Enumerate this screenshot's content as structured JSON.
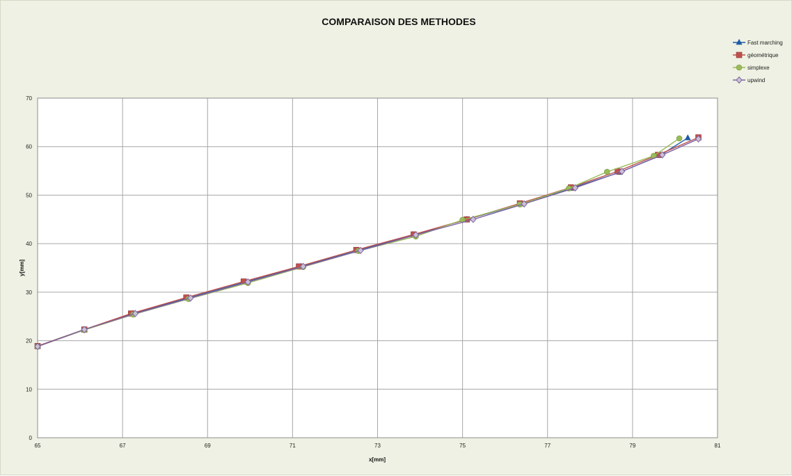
{
  "chart_data": {
    "type": "line",
    "title": "COMPARAISON DES METHODES",
    "xlabel": "x[mm]",
    "ylabel": "y[mm]",
    "xlim": [
      65,
      81
    ],
    "ylim": [
      0,
      70
    ],
    "x_ticks": [
      "65",
      "67",
      "69",
      "71",
      "73",
      "75",
      "77",
      "79",
      "81"
    ],
    "y_ticks": [
      "0",
      "10",
      "20",
      "30",
      "40",
      "50",
      "60",
      "70"
    ],
    "grid": true,
    "legend_position": "top-right",
    "series": [
      {
        "name": "Fast marching",
        "color": "#1f5aa6",
        "marker": "triangle",
        "x": [
          65.0,
          66.1,
          67.25,
          68.55,
          69.9,
          71.2,
          72.55,
          73.85,
          75.1,
          76.4,
          77.55,
          78.7,
          79.65,
          80.3
        ],
        "y": [
          18.9,
          22.3,
          25.6,
          28.8,
          32.1,
          35.3,
          38.6,
          41.8,
          45.0,
          48.2,
          51.4,
          54.7,
          58.2,
          61.8
        ]
      },
      {
        "name": "géométrique",
        "color": "#c0504d",
        "marker": "square",
        "x": [
          65.0,
          66.1,
          67.2,
          68.5,
          69.85,
          71.15,
          72.5,
          73.85,
          75.1,
          76.35,
          77.55,
          78.65,
          79.6,
          80.55
        ],
        "y": [
          18.9,
          22.3,
          25.6,
          28.9,
          32.2,
          35.3,
          38.7,
          41.9,
          45.0,
          48.3,
          51.6,
          54.9,
          58.3,
          61.9
        ]
      },
      {
        "name": "simplexe",
        "color": "#9bbb59",
        "marker": "circle",
        "x": [
          65.0,
          66.1,
          67.25,
          68.55,
          69.95,
          71.25,
          72.55,
          73.9,
          75.0,
          76.35,
          77.5,
          78.4,
          79.5,
          80.1
        ],
        "y": [
          18.8,
          22.2,
          25.4,
          28.6,
          31.9,
          35.2,
          38.5,
          41.5,
          44.9,
          48.1,
          51.4,
          54.8,
          58.1,
          61.7
        ]
      },
      {
        "name": "upwind",
        "color": "#8064a2",
        "marker": "diamond",
        "x": [
          65.0,
          66.1,
          67.3,
          68.6,
          69.95,
          71.25,
          72.6,
          73.9,
          75.25,
          76.45,
          77.65,
          78.75,
          79.7,
          80.55
        ],
        "y": [
          18.8,
          22.3,
          25.6,
          28.8,
          32.1,
          35.3,
          38.6,
          41.8,
          45.0,
          48.2,
          51.5,
          54.9,
          58.3,
          61.6
        ]
      }
    ]
  }
}
